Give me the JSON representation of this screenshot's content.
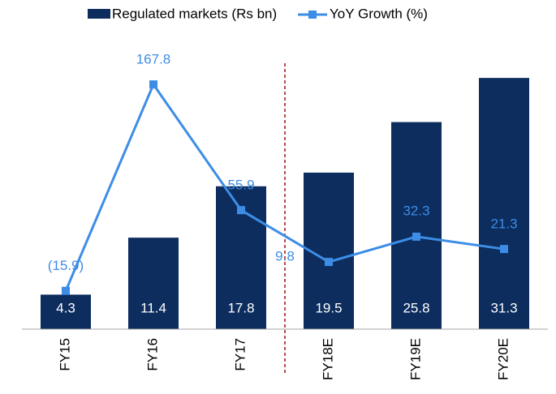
{
  "chart_data": {
    "type": "bar-line",
    "categories": [
      "FY15",
      "FY16",
      "FY17",
      "FY18E",
      "FY19E",
      "FY20E"
    ],
    "series": [
      {
        "name": "Regulated markets (Rs bn)",
        "type": "bar",
        "color": "#0c2d5e",
        "values": [
          4.3,
          11.4,
          17.8,
          19.5,
          25.8,
          31.3
        ]
      },
      {
        "name": "YoY Growth (%)",
        "type": "line",
        "axis": "y2",
        "color": "#3d8de6",
        "values": [
          -15.9,
          167.8,
          55.9,
          9.8,
          32.3,
          21.3
        ],
        "value_labels": [
          "(15.9)",
          "167.8",
          "55.9",
          "9.8",
          "32.3",
          "21.3"
        ]
      }
    ],
    "ylim": [
      0,
      35
    ],
    "y2lim": [
      -50,
      200
    ],
    "grid": false,
    "legend": "top"
  }
}
